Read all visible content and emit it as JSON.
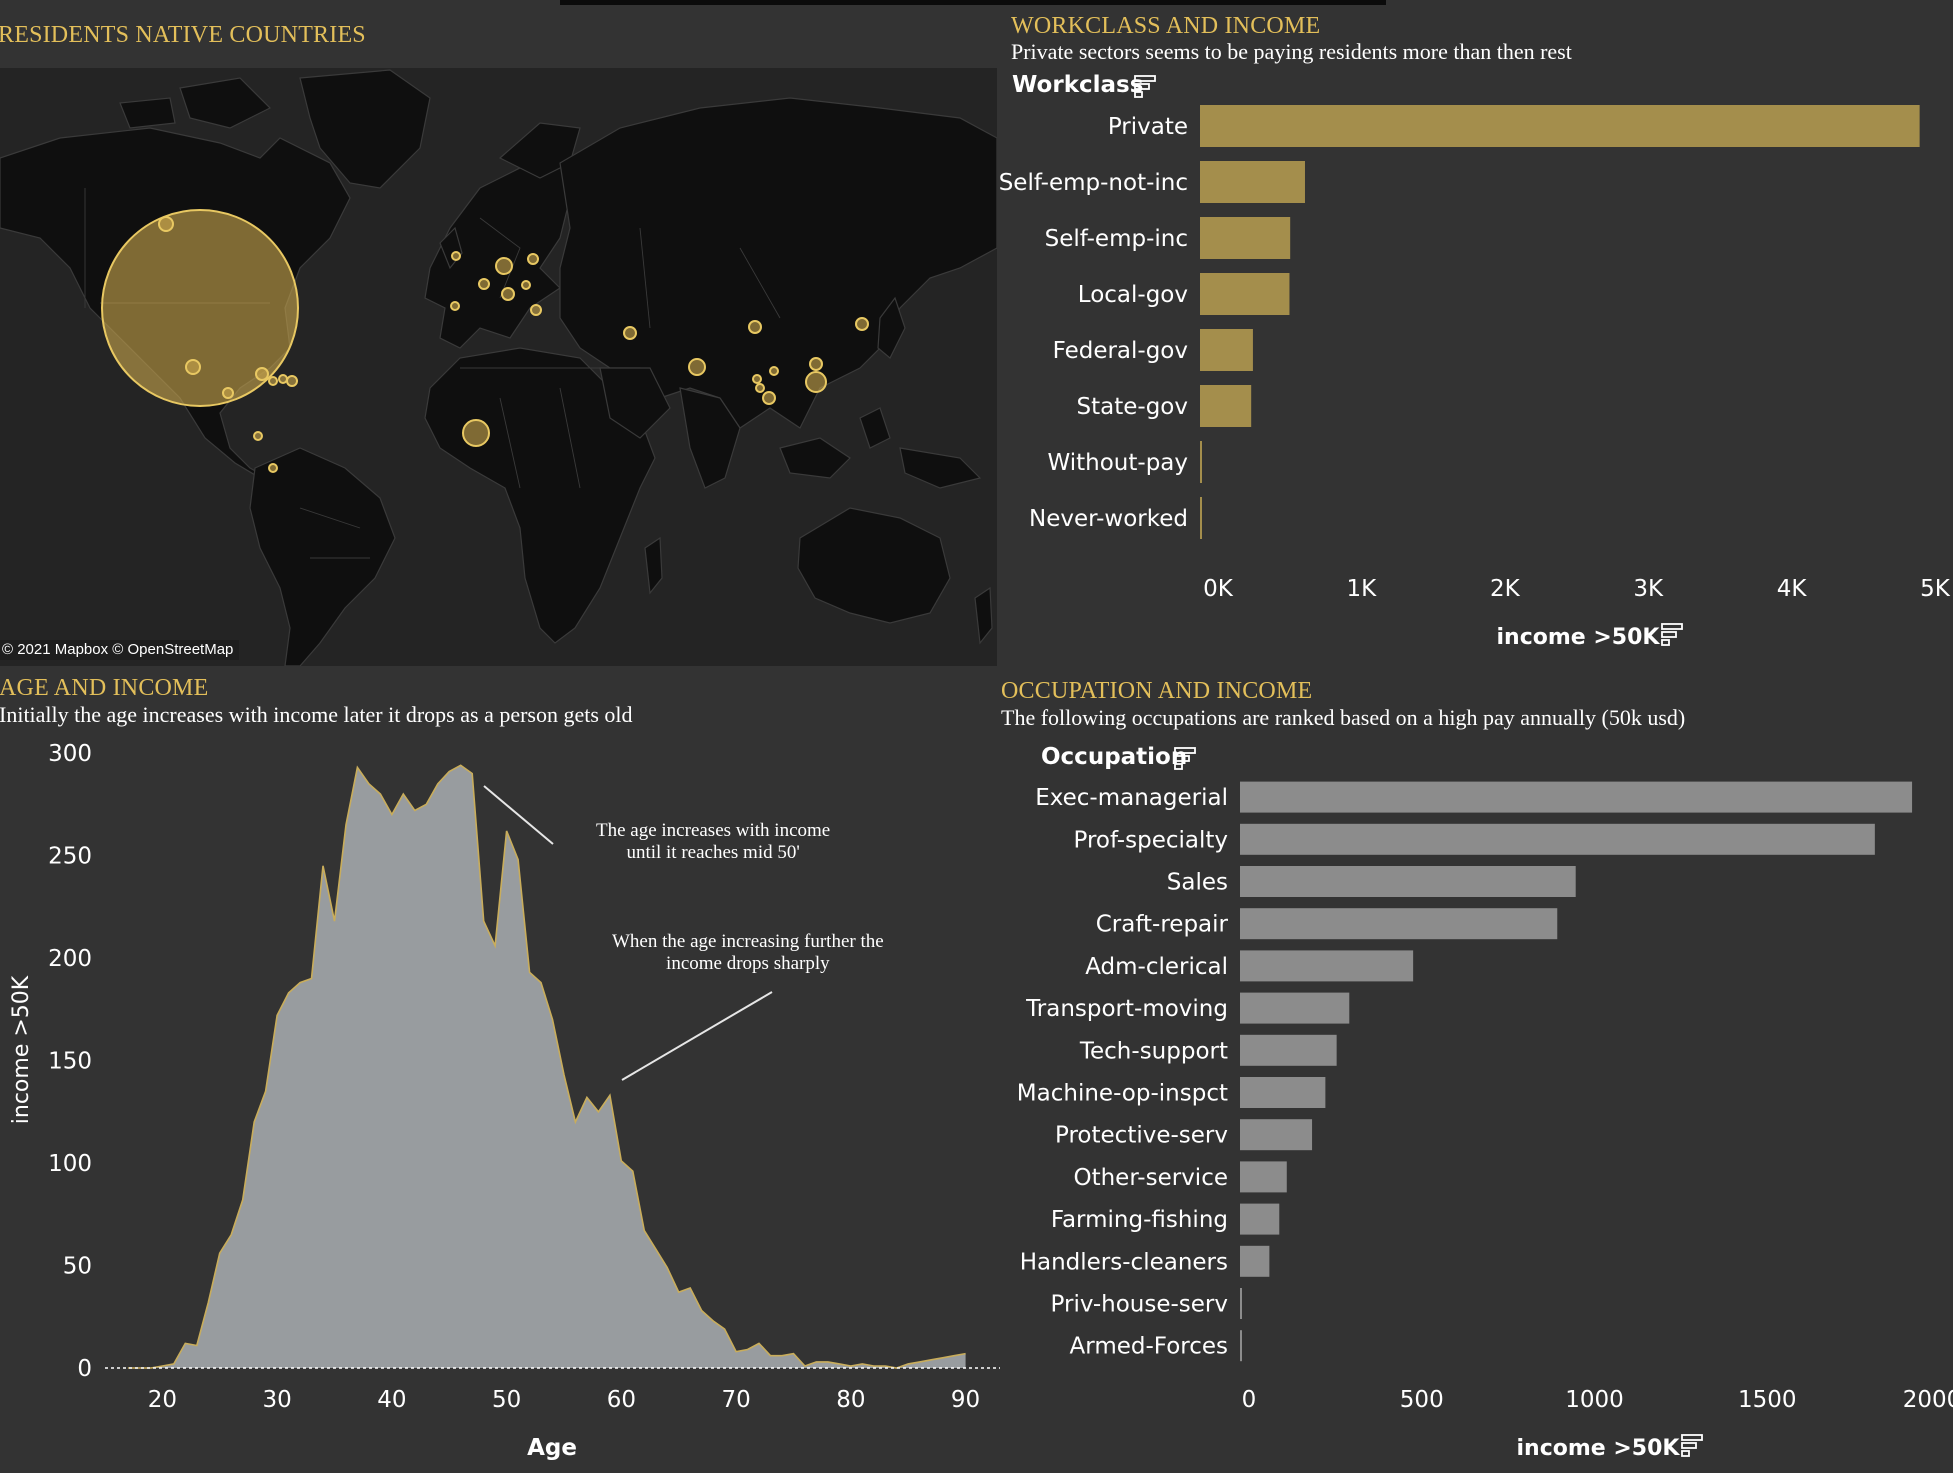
{
  "map": {
    "title": "RESIDENTS  NATIVE COUNTRIES",
    "credit": "© 2021 Mapbox © OpenStreetMap",
    "icon": "world-map"
  },
  "workclass": {
    "title": "WORKCLASS AND INCOME",
    "subtitle": "Private sectors seems to be paying residents more than then rest",
    "dim_label": "Workclass",
    "sort_icon": "sort-icon",
    "bar_color": "#a48e4c"
  },
  "occupation": {
    "title": "OCCUPATION AND INCOME",
    "subtitle": "The following occupations are  ranked based on a high pay annually (50k usd)",
    "dim_label": "Occupation",
    "sort_icon": "sort-icon",
    "bar_color": "#8c8c8c"
  },
  "age": {
    "title": "AGE  AND  INCOME",
    "subtitle": "Initially the age increases with income later it drops as a person gets old",
    "annotation1": [
      "The age increases with income",
      "until it reaches mid 50'"
    ],
    "annotation2": [
      "When the age increasing further the",
      "income drops sharply"
    ],
    "fill_color": "#989c9f",
    "line_color": "#c9ad5b"
  },
  "chart_data": [
    {
      "type": "bar",
      "orientation": "horizontal",
      "title": "WORKCLASS AND INCOME",
      "ylabel": "Workclass",
      "xlabel": "income >50K",
      "categories": [
        "Private",
        "Self-emp-not-inc",
        "Self-emp-inc",
        "Local-gov",
        "Federal-gov",
        "State-gov",
        "Without-pay",
        "Never-worked"
      ],
      "values": [
        4963,
        724,
        622,
        617,
        365,
        353,
        0,
        0
      ],
      "xlim": [
        0,
        5000
      ],
      "ticks": [
        "0K",
        "1K",
        "2K",
        "3K",
        "4K",
        "5K"
      ]
    },
    {
      "type": "bar",
      "orientation": "horizontal",
      "title": "OCCUPATION AND INCOME",
      "ylabel": "Occupation",
      "xlabel": "income >50K",
      "categories": [
        "Exec-managerial",
        "Prof-specialty",
        "Sales",
        "Craft-repair",
        "Adm-clerical",
        "Transport-moving",
        "Tech-support",
        "Machine-op-inspct",
        "Protective-serv",
        "Other-service",
        "Farming-fishing",
        "Handlers-cleaners",
        "Priv-house-serv",
        "Armed-Forces"
      ],
      "values": [
        1968,
        1859,
        983,
        929,
        507,
        320,
        283,
        250,
        211,
        137,
        115,
        86,
        1,
        1
      ],
      "xlim": [
        0,
        2000
      ],
      "ticks": [
        "0",
        "500",
        "1000",
        "1500",
        "2000"
      ]
    },
    {
      "type": "area",
      "title": "AGE  AND  INCOME",
      "xlabel": "Age",
      "ylabel": "income >50K",
      "x": [
        17,
        18,
        19,
        20,
        21,
        22,
        23,
        24,
        25,
        26,
        27,
        28,
        29,
        30,
        31,
        32,
        33,
        34,
        35,
        36,
        37,
        38,
        39,
        40,
        41,
        42,
        43,
        44,
        45,
        46,
        47,
        48,
        49,
        50,
        51,
        52,
        53,
        54,
        55,
        56,
        57,
        58,
        59,
        60,
        61,
        62,
        63,
        64,
        65,
        66,
        67,
        68,
        69,
        70,
        71,
        72,
        73,
        74,
        75,
        76,
        77,
        78,
        79,
        80,
        81,
        82,
        83,
        84,
        85,
        86,
        87,
        88,
        89,
        90
      ],
      "y": [
        0,
        0,
        0,
        1,
        2,
        12,
        11,
        32,
        56,
        65,
        82,
        120,
        135,
        172,
        183,
        188,
        190,
        245,
        218,
        265,
        293,
        285,
        280,
        270,
        280,
        272,
        275,
        285,
        291,
        294,
        290,
        218,
        206,
        262,
        248,
        193,
        188,
        170,
        143,
        120,
        132,
        125,
        133,
        101,
        96,
        67,
        58,
        49,
        37,
        39,
        28,
        23,
        19,
        8,
        9,
        12,
        6,
        6,
        7,
        1,
        3,
        3,
        2,
        1,
        2,
        1,
        1,
        0,
        2,
        3,
        4,
        5,
        6,
        7
      ],
      "xlim": [
        15,
        93
      ],
      "ylim": [
        0,
        300
      ],
      "xticks": [
        20,
        30,
        40,
        50,
        60,
        70,
        80,
        90
      ],
      "yticks": [
        0,
        50,
        100,
        150,
        200,
        250,
        300
      ]
    }
  ]
}
